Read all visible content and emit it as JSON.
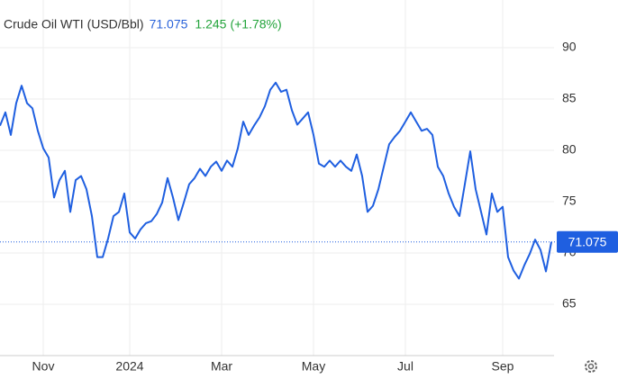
{
  "chart_data": {
    "type": "line",
    "title": "Crude Oil WTI (USD/Bbl)",
    "last_value": 71.075,
    "change": 1.245,
    "change_percent": {
      "value": 1.78,
      "label": "(+1.78%)"
    },
    "color": "#1f5fe0",
    "grid": true,
    "categories": [
      null,
      null,
      null,
      null,
      null,
      null,
      null,
      null,
      "Nov",
      null,
      null,
      null,
      null,
      null,
      null,
      null,
      null,
      null,
      null,
      null,
      null,
      null,
      null,
      null,
      "2024",
      null,
      null,
      null,
      null,
      null,
      null,
      null,
      null,
      null,
      null,
      null,
      null,
      null,
      null,
      null,
      null,
      "Mar",
      null,
      null,
      null,
      null,
      null,
      null,
      null,
      null,
      null,
      null,
      null,
      null,
      null,
      null,
      null,
      null,
      "May",
      null,
      null,
      null,
      null,
      null,
      null,
      null,
      null,
      null,
      null,
      null,
      null,
      null,
      null,
      null,
      null,
      "Jul",
      null,
      null,
      null,
      null,
      null,
      null,
      null,
      null,
      null,
      null,
      null,
      null,
      null,
      null,
      null,
      null,
      null,
      "Sep",
      null,
      null,
      null,
      null,
      null,
      null,
      null,
      null,
      null
    ],
    "values": [
      82.4,
      83.7,
      81.5,
      84.6,
      86.3,
      84.6,
      84.1,
      81.9,
      80.2,
      79.3,
      75.4,
      77.1,
      78.0,
      74.0,
      77.1,
      77.5,
      76.2,
      73.6,
      69.6,
      69.6,
      71.4,
      73.6,
      74.0,
      75.8,
      72.0,
      71.4,
      72.3,
      72.9,
      73.1,
      73.8,
      74.9,
      77.3,
      75.4,
      73.2,
      74.9,
      76.7,
      77.3,
      78.2,
      77.5,
      78.4,
      78.9,
      78.0,
      79.0,
      78.4,
      80.2,
      82.8,
      81.5,
      82.4,
      83.2,
      84.3,
      85.9,
      86.6,
      85.7,
      85.9,
      83.9,
      82.5,
      83.1,
      83.7,
      81.5,
      78.7,
      78.4,
      79.0,
      78.4,
      79.0,
      78.4,
      78.0,
      79.6,
      77.5,
      74.0,
      74.6,
      76.2,
      78.4,
      80.6,
      81.3,
      81.9,
      82.8,
      83.7,
      82.8,
      81.9,
      82.1,
      81.5,
      78.4,
      77.5,
      75.8,
      74.5,
      73.6,
      76.7,
      79.9,
      76.2,
      74.0,
      71.8,
      75.8,
      74.0,
      74.5,
      69.6,
      68.3,
      67.5,
      68.8,
      69.9,
      71.3,
      70.3,
      68.2,
      71.075
    ],
    "ylim": [
      60,
      95
    ],
    "yticks": [
      65,
      70,
      75,
      80,
      85,
      90
    ]
  }
}
